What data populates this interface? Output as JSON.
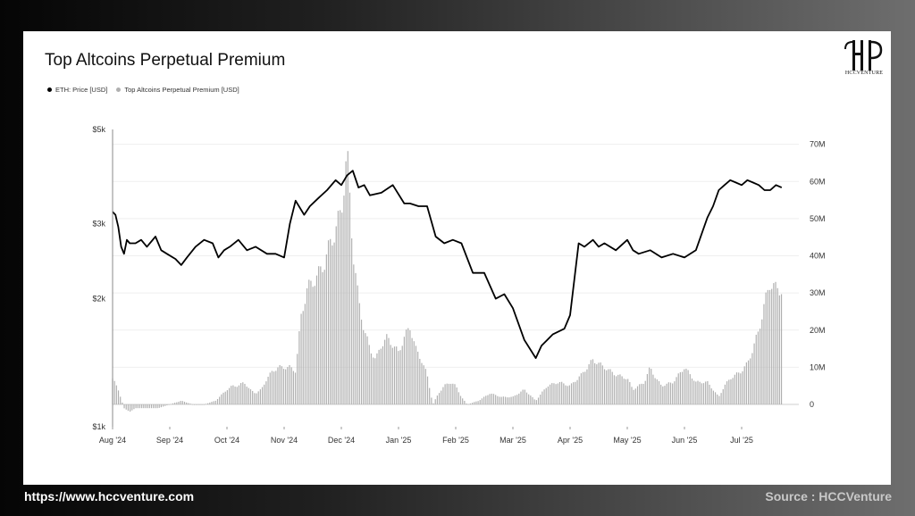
{
  "footer": {
    "website": "https://www.hccventure.com",
    "source": "Source : HCCVenture"
  },
  "logo": {
    "text": "HCCVENTURE"
  },
  "chart_data": {
    "type": "line",
    "title": "Top Altcoins Perpetual Premium",
    "legend": [
      {
        "name": "ETH: Price [USD]",
        "color": "#000000"
      },
      {
        "name": "Top Altcoins Perpetual Premium [USD]",
        "color": "#b0b0b0"
      }
    ],
    "legend_placement": "top-left",
    "grid": true,
    "x_ticks": [
      "Aug '24",
      "Sep '24",
      "Oct '24",
      "Nov '24",
      "Dec '24",
      "Jan '25",
      "Feb '25",
      "Mar '25",
      "Apr '25",
      "May '25",
      "Jun '25",
      "Jul '25"
    ],
    "y_left": {
      "label": "",
      "scale": "log",
      "ticks": [
        "$1k",
        "$2k",
        "$3k",
        "$5k"
      ],
      "tick_values": [
        1000,
        2000,
        3000,
        5000
      ],
      "range": [
        1000,
        5000
      ]
    },
    "y_right": {
      "label": "",
      "ticks": [
        "0",
        "10M",
        "20M",
        "30M",
        "40M",
        "50M",
        "60M",
        "70M"
      ],
      "tick_values": [
        0,
        10,
        20,
        30,
        40,
        50,
        60,
        70
      ],
      "range": [
        -6,
        74
      ],
      "unit": "M USD"
    },
    "x_range": [
      0,
      12
    ],
    "series": [
      {
        "name": "ETH: Price [USD]",
        "type": "line",
        "color": "#000000",
        "axis": "left",
        "x": [
          0.0,
          0.05,
          0.1,
          0.15,
          0.2,
          0.25,
          0.3,
          0.4,
          0.5,
          0.6,
          0.75,
          0.85,
          0.95,
          1.1,
          1.2,
          1.3,
          1.45,
          1.6,
          1.75,
          1.85,
          1.95,
          2.05,
          2.2,
          2.35,
          2.5,
          2.7,
          2.85,
          3.0,
          3.1,
          3.2,
          3.35,
          3.45,
          3.6,
          3.75,
          3.9,
          4.0,
          4.1,
          4.2,
          4.3,
          4.4,
          4.5,
          4.7,
          4.9,
          5.1,
          5.2,
          5.35,
          5.5,
          5.65,
          5.8,
          5.95,
          6.1,
          6.3,
          6.5,
          6.7,
          6.85,
          7.0,
          7.2,
          7.4,
          7.5,
          7.7,
          7.9,
          8.0,
          8.15,
          8.25,
          8.4,
          8.5,
          8.6,
          8.8,
          9.0,
          9.1,
          9.2,
          9.4,
          9.6,
          9.8,
          10.0,
          10.2,
          10.4,
          10.5,
          10.6,
          10.7,
          10.8,
          10.9,
          11.0,
          11.1,
          11.2,
          11.3,
          11.4,
          11.5,
          11.6,
          11.7
        ],
        "y": [
          3200,
          3150,
          2950,
          2650,
          2550,
          2750,
          2700,
          2700,
          2750,
          2650,
          2800,
          2600,
          2550,
          2480,
          2400,
          2500,
          2650,
          2750,
          2700,
          2500,
          2600,
          2650,
          2750,
          2600,
          2650,
          2550,
          2550,
          2500,
          3000,
          3400,
          3150,
          3300,
          3450,
          3600,
          3800,
          3700,
          3900,
          4000,
          3650,
          3700,
          3500,
          3550,
          3700,
          3350,
          3350,
          3300,
          3300,
          2800,
          2700,
          2750,
          2700,
          2300,
          2300,
          2000,
          2050,
          1900,
          1600,
          1450,
          1550,
          1650,
          1700,
          1830,
          2700,
          2650,
          2750,
          2650,
          2700,
          2600,
          2750,
          2600,
          2550,
          2600,
          2500,
          2550,
          2500,
          2600,
          3100,
          3300,
          3600,
          3700,
          3800,
          3750,
          3700,
          3800,
          3750,
          3700,
          3600,
          3600,
          3700,
          3650
        ]
      },
      {
        "name": "Top Altcoins Perpetual Premium [USD]",
        "type": "bar",
        "color": "#b0b0b0",
        "axis": "right",
        "x": [
          0.0,
          0.1,
          0.2,
          0.3,
          0.4,
          0.6,
          0.8,
          1.0,
          1.2,
          1.4,
          1.6,
          1.8,
          2.0,
          2.1,
          2.2,
          2.3,
          2.4,
          2.5,
          2.6,
          2.7,
          2.8,
          2.9,
          3.0,
          3.1,
          3.2,
          3.3,
          3.4,
          3.5,
          3.6,
          3.7,
          3.8,
          3.9,
          4.0,
          4.1,
          4.2,
          4.3,
          4.4,
          4.5,
          4.6,
          4.7,
          4.8,
          4.9,
          5.0,
          5.1,
          5.2,
          5.3,
          5.4,
          5.5,
          5.6,
          5.7,
          5.8,
          5.9,
          6.0,
          6.1,
          6.2,
          6.4,
          6.6,
          6.8,
          7.0,
          7.2,
          7.4,
          7.6,
          7.8,
          8.0,
          8.2,
          8.4,
          8.6,
          8.8,
          9.0,
          9.1,
          9.2,
          9.3,
          9.4,
          9.5,
          9.6,
          9.8,
          10.0,
          10.2,
          10.4,
          10.5,
          10.6,
          10.7,
          10.8,
          10.9,
          11.0,
          11.1,
          11.2,
          11.3,
          11.4,
          11.5,
          11.6,
          11.7
        ],
        "y": [
          7,
          4,
          -1,
          -2,
          -1,
          -1,
          -1,
          0,
          1,
          0,
          0,
          1,
          4,
          5,
          5,
          6,
          4,
          3,
          4,
          7,
          9,
          10,
          10,
          10,
          9,
          24,
          31,
          33,
          35,
          38,
          43,
          47,
          52,
          68,
          42,
          28,
          20,
          15,
          12,
          16,
          18,
          16,
          14,
          18,
          21,
          15,
          12,
          8,
          0,
          3,
          5,
          6,
          5,
          2,
          0,
          1,
          3,
          2,
          2,
          4,
          1,
          5,
          6,
          5,
          8,
          12,
          10,
          8,
          7,
          4,
          5,
          6,
          10,
          7,
          5,
          6,
          10,
          6,
          6,
          4,
          2,
          5,
          7,
          8,
          9,
          11,
          15,
          20,
          27,
          33,
          31,
          31
        ]
      }
    ]
  }
}
